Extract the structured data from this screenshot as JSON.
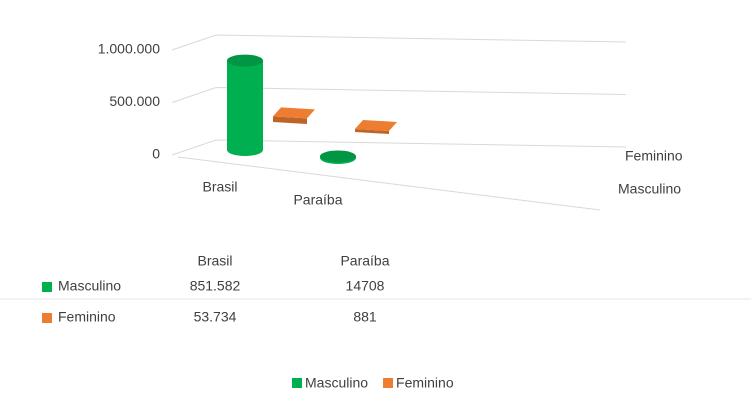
{
  "chart_data": {
    "type": "bar3d",
    "categories": [
      "Brasil",
      "Paraíba"
    ],
    "series": [
      {
        "name": "Masculino",
        "color": "#00b050",
        "values": [
          851582,
          14708
        ],
        "value_labels": [
          "851.582",
          "14708"
        ]
      },
      {
        "name": "Feminino",
        "color": "#ed7d31",
        "values": [
          53734,
          881
        ],
        "value_labels": [
          "53.734",
          "881"
        ]
      }
    ],
    "ylim": [
      0,
      1000000
    ],
    "yticks": [
      0,
      {
        "value": 500000,
        "label": "500.000"
      },
      {
        "value": 1000000,
        "label": "1.000.000"
      }
    ],
    "grid": true,
    "legend": "bottom"
  }
}
